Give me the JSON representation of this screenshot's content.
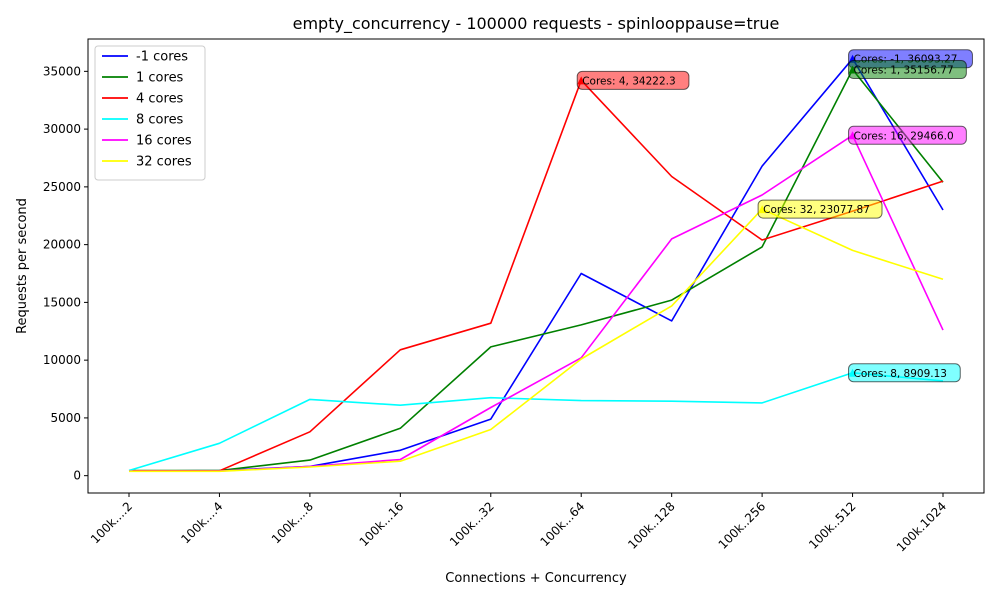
{
  "chart_data": {
    "type": "line",
    "title": "empty_concurrency - 100000 requests - spinlooppause=true",
    "xlabel": "Connections + Concurrency",
    "ylabel": "Requests per second",
    "categories": [
      "100k....2",
      "100k....4",
      "100k....8",
      "100k...16",
      "100k...32",
      "100k...64",
      "100k..128",
      "100k..256",
      "100k..512",
      "100k.1024"
    ],
    "ylim": [
      -1500,
      37800
    ],
    "yticks": [
      0,
      5000,
      10000,
      15000,
      20000,
      25000,
      30000,
      35000
    ],
    "legend_position": "top-left",
    "grid": false,
    "series": [
      {
        "name": "-1 cores",
        "color": "#0000ff",
        "values": [
          400,
          450,
          800,
          2200,
          4900,
          17500,
          13400,
          26800,
          36093.27,
          23000
        ]
      },
      {
        "name": "1 cores",
        "color": "#008000",
        "values": [
          450,
          450,
          1350,
          4100,
          11150,
          13050,
          15200,
          19800,
          35156.77,
          25400
        ]
      },
      {
        "name": "4 cores",
        "color": "#ff0000",
        "values": [
          420,
          420,
          3800,
          10900,
          13200,
          34222.3,
          25900,
          20400,
          22900,
          25500
        ]
      },
      {
        "name": "8 cores",
        "color": "#00ffff",
        "values": [
          450,
          2800,
          6600,
          6100,
          6750,
          6500,
          6450,
          6300,
          8909.13,
          8200
        ]
      },
      {
        "name": "16 cores",
        "color": "#ff00ff",
        "values": [
          400,
          400,
          800,
          1400,
          5900,
          10200,
          20500,
          24300,
          29466.0,
          12600
        ]
      },
      {
        "name": "32 cores",
        "color": "#ffff00",
        "values": [
          380,
          380,
          750,
          1250,
          4000,
          10100,
          14700,
          23077.87,
          19500,
          17000
        ]
      }
    ],
    "annotations": [
      {
        "text": "Cores: -1, 36093.27",
        "series": 0,
        "index": 8,
        "color": "#0000ff"
      },
      {
        "text": "Cores: 1, 35156.77",
        "series": 1,
        "index": 8,
        "color": "#008000"
      },
      {
        "text": "Cores: 4, 34222.3",
        "series": 2,
        "index": 5,
        "color": "#ff0000"
      },
      {
        "text": "Cores: 8, 8909.13",
        "series": 3,
        "index": 8,
        "color": "#00ffff"
      },
      {
        "text": "Cores: 16, 29466.0",
        "series": 4,
        "index": 8,
        "color": "#ff00ff"
      },
      {
        "text": "Cores: 32, 23077.87",
        "series": 5,
        "index": 7,
        "color": "#ffff00"
      }
    ]
  }
}
